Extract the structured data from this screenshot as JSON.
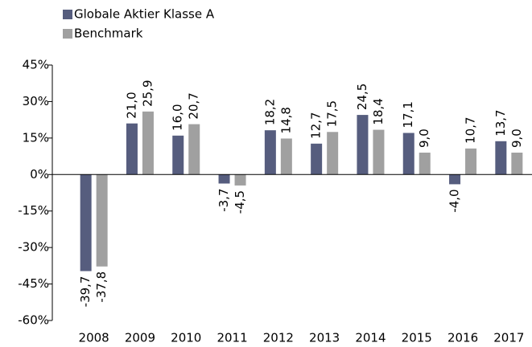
{
  "chart_data": {
    "type": "bar",
    "categories": [
      "2008",
      "2009",
      "2010",
      "2011",
      "2012",
      "2013",
      "2014",
      "2015",
      "2016",
      "2017"
    ],
    "series": [
      {
        "name": "Globale Aktier Klasse A",
        "color": "#565d7e",
        "values": [
          -39.7,
          21.0,
          16.0,
          -3.7,
          18.2,
          12.7,
          24.5,
          17.1,
          -4.0,
          13.7
        ],
        "value_labels": [
          "-39,7",
          "21,0",
          "16,0",
          "-3,7",
          "18,2",
          "12,7",
          "24,5",
          "17,1",
          "-4,0",
          "13,7"
        ]
      },
      {
        "name": "Benchmark",
        "color": "#a0a0a0",
        "values": [
          -37.8,
          25.9,
          20.7,
          -4.5,
          14.8,
          17.5,
          18.4,
          9.0,
          10.7,
          9.0
        ],
        "value_labels": [
          "-37,8",
          "25,9",
          "20,7",
          "-4,5",
          "14,8",
          "17,5",
          "18,4",
          "9,0",
          "10,7",
          "9,0"
        ]
      }
    ],
    "ylim": [
      -60,
      45
    ],
    "yticks": [
      {
        "value": -60,
        "label": "-60%"
      },
      {
        "value": -45,
        "label": "-45%"
      },
      {
        "value": -30,
        "label": "-30%"
      },
      {
        "value": -15,
        "label": "-15%"
      },
      {
        "value": 0,
        "label": "0%"
      },
      {
        "value": 15,
        "label": "15%"
      },
      {
        "value": 30,
        "label": "30%"
      },
      {
        "value": 45,
        "label": "45%"
      }
    ],
    "legend": "top-left"
  }
}
